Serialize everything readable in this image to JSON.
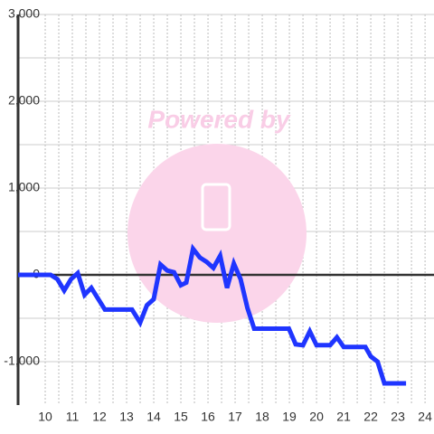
{
  "chart_data": {
    "type": "line",
    "watermark": "Powered by",
    "xlim": [
      9,
      24.33
    ],
    "ylim": [
      -1500,
      3000
    ],
    "xticks": [
      10,
      11,
      12,
      13,
      14,
      15,
      16,
      17,
      18,
      19,
      20,
      21,
      22,
      23,
      24
    ],
    "yticks": [
      {
        "value": -1000,
        "label": "-1,000"
      },
      0,
      {
        "value": 1000,
        "label": "1,000"
      },
      {
        "value": 2000,
        "label": "2,000"
      },
      {
        "value": 3000,
        "label": "3,000"
      }
    ],
    "grid": true,
    "series": [
      {
        "color": "#1f35ff",
        "x": [
          9.0,
          10.2,
          10.45,
          10.7,
          10.95,
          11.2,
          11.45,
          11.7,
          12.2,
          13.2,
          13.5,
          13.75,
          14.0,
          14.25,
          14.5,
          14.75,
          15.0,
          15.2,
          15.45,
          15.7,
          15.95,
          16.2,
          16.45,
          16.7,
          16.95,
          17.2,
          17.45,
          17.7,
          18.98,
          19.23,
          19.5,
          19.75,
          20.0,
          20.5,
          20.75,
          21.0,
          21.8,
          22.0,
          22.25,
          22.5,
          23.3
        ],
        "values": [
          0,
          0,
          -50,
          -180,
          -50,
          20,
          -230,
          -150,
          -400,
          -400,
          -550,
          -350,
          -280,
          120,
          50,
          30,
          -120,
          -90,
          300,
          200,
          150,
          80,
          220,
          -150,
          130,
          -50,
          -380,
          -620,
          -620,
          -800,
          -810,
          -650,
          -810,
          -810,
          -720,
          -830,
          -830,
          -940,
          -1000,
          -1250,
          -1250
        ]
      }
    ]
  }
}
